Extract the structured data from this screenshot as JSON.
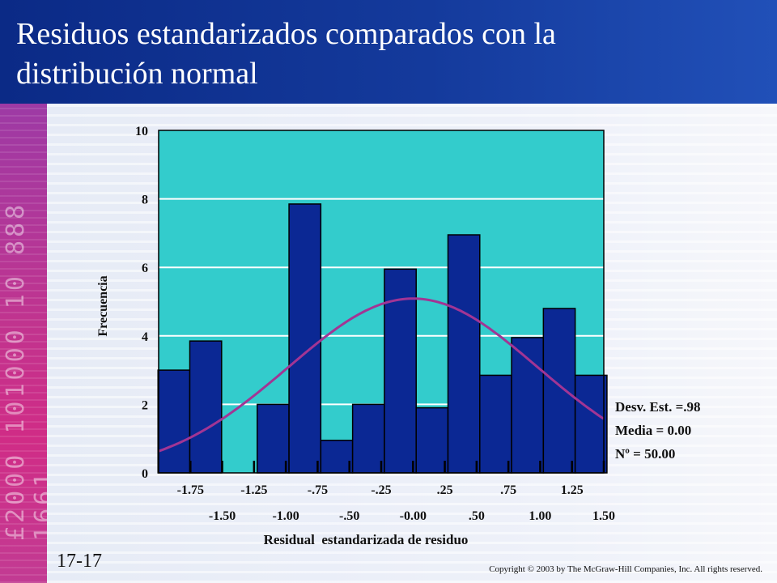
{
  "title_line1": "Residuos estandarizados comparados con la",
  "title_line2": "distribución normal",
  "slide_number": "17-17",
  "copyright": "Copyright © 2003 by The McGraw-Hill Companies, Inc.  All rights reserved.",
  "decor_text": "£2000 101000 10 888 1661",
  "stats": [
    "Desv. Est. =.98",
    "Media = 0.00",
    "Nº = 50.00"
  ],
  "chart_data": {
    "type": "bar",
    "ylabel": "Frecuencia",
    "xlabel": "Residual  estandarizada de residuo",
    "ylim": [
      0,
      10
    ],
    "yticks": [
      "0",
      "2",
      "4",
      "6",
      "8",
      "10"
    ],
    "xticks_top": [
      "-1.75",
      "-1.25",
      "-.75",
      "-.25",
      ".25",
      ".75",
      "1.25"
    ],
    "xticks_bottom": [
      "-1.50",
      "-1.00",
      "-.50",
      "-0.00",
      ".50",
      "1.00",
      "1.50"
    ],
    "xlim": [
      -2.0,
      1.5
    ],
    "bars": [
      {
        "center": -1.88,
        "value": 3.0
      },
      {
        "center": -1.63,
        "value": 3.85
      },
      {
        "center": -1.38,
        "value": 0
      },
      {
        "center": -1.1,
        "value": 2.0
      },
      {
        "center": -0.85,
        "value": 7.85
      },
      {
        "center": -0.6,
        "value": 0.95
      },
      {
        "center": -0.35,
        "value": 2.0
      },
      {
        "center": -0.1,
        "value": 5.95
      },
      {
        "center": 0.15,
        "value": 1.9
      },
      {
        "center": 0.4,
        "value": 6.95
      },
      {
        "center": 0.65,
        "value": 2.85
      },
      {
        "center": 0.9,
        "value": 3.95
      },
      {
        "center": 1.15,
        "value": 4.8
      },
      {
        "center": 1.4,
        "value": 2.85
      }
    ],
    "bar_width": 0.25,
    "normal_curve": {
      "mean": 0.0,
      "sd": 0.98,
      "n": 50,
      "bin_width": 0.25
    },
    "grid": true,
    "colors": {
      "plot_bg": "#33cccc",
      "bar": "#0b2894",
      "bar_edge": "#000000",
      "curve": "#a23594"
    }
  }
}
